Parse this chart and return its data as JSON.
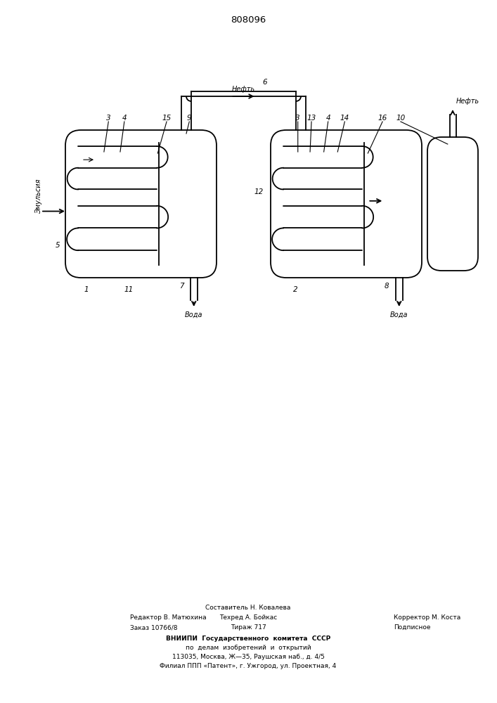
{
  "title": "808096",
  "bg_color": "#ffffff",
  "line_color": "#000000",
  "lw": 1.3,
  "footer_col1_line1": "Редактор В. Матюхина",
  "footer_col1_line2": "Заказ 10766/8",
  "footer_col2_line0": "Составитель Н. Ковалева",
  "footer_col2_line1": "Техред А. Бойкас",
  "footer_col2_line2": "Тираж 717",
  "footer_col3_line1": "Корректор М. Коста",
  "footer_col3_line2": "Подписное",
  "footer_vniip1": "ВНИИПИ  Государственного  комитета  СССР",
  "footer_vniip2": "по  делам  изобретений  и  открытий",
  "footer_addr1": "113035, Москва, Ж—35, Раушская наб., д. 4/5",
  "footer_addr2": "Филиал ППП «Патент», г. Ужгород, ул. Проектная, 4"
}
